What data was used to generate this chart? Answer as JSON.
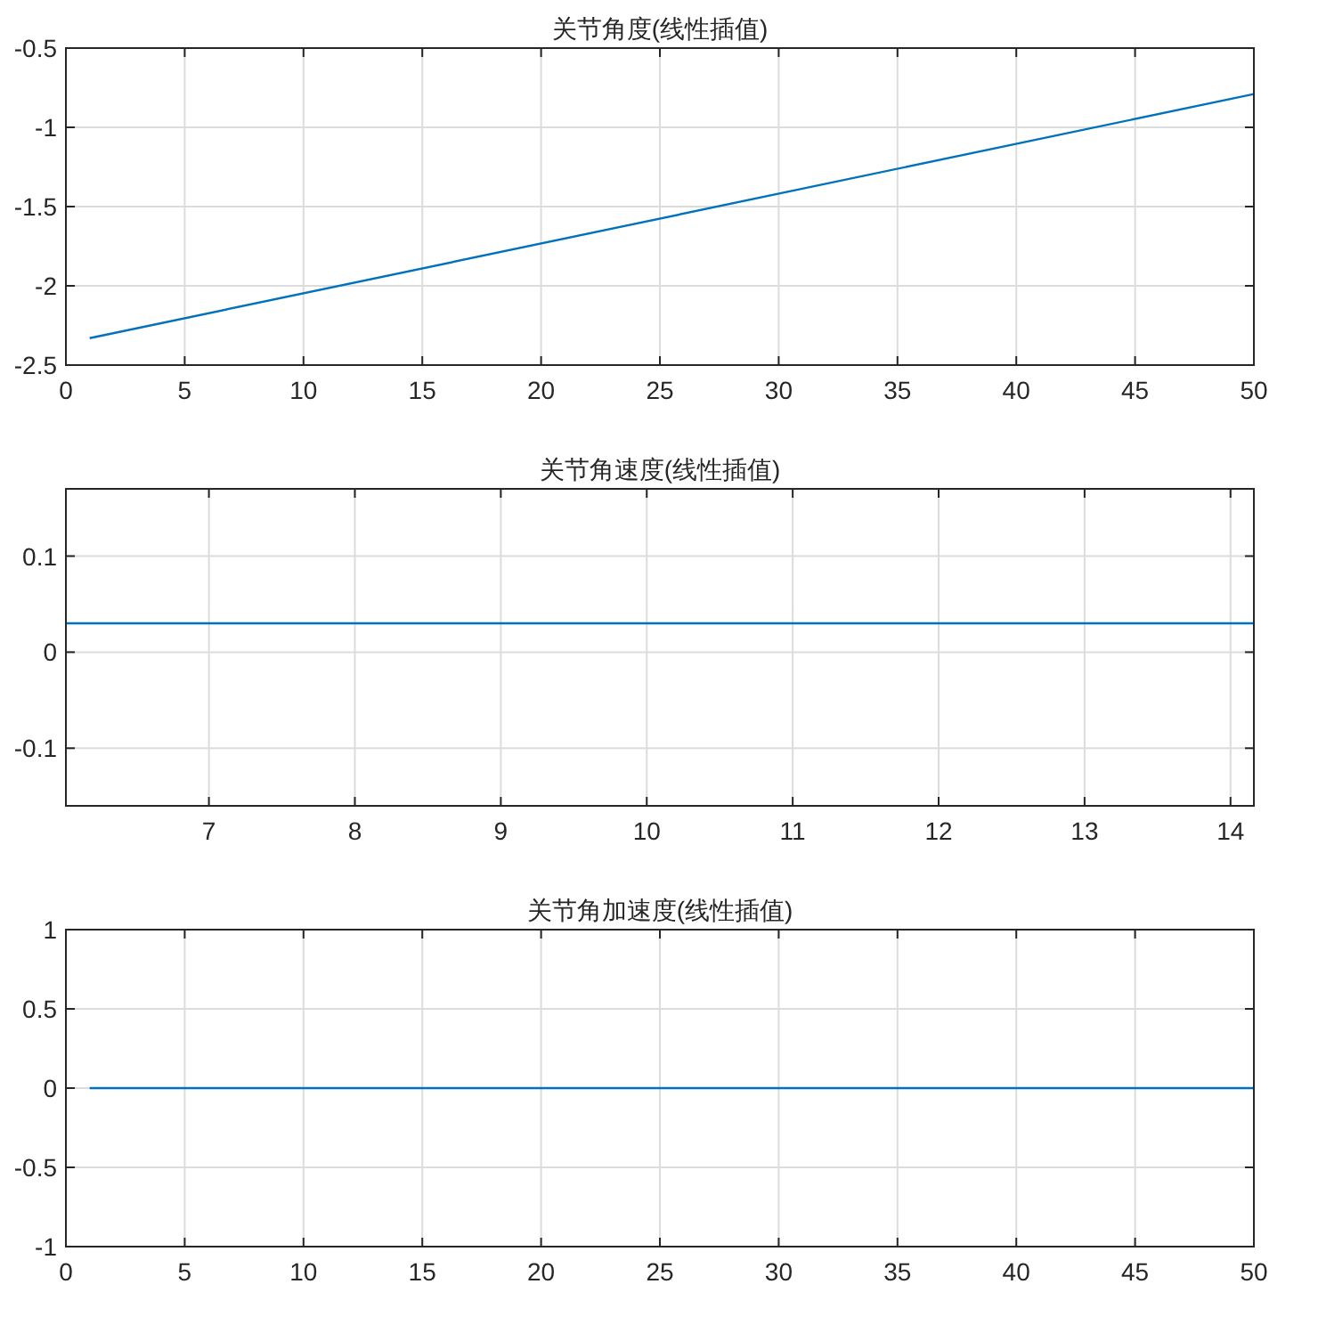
{
  "chart_data": [
    {
      "type": "line",
      "title": "关节角度(线性插值)",
      "xlim": [
        0,
        50
      ],
      "ylim": [
        -2.5,
        -0.5
      ],
      "xticks": [
        0,
        5,
        10,
        15,
        20,
        25,
        30,
        35,
        40,
        45,
        50
      ],
      "yticks": [
        -2.5,
        -2,
        -1.5,
        -1,
        -0.5
      ],
      "grid": true,
      "series": [
        {
          "color": "#0072bd",
          "x": [
            1,
            50
          ],
          "values": [
            -2.33,
            -0.79
          ]
        }
      ]
    },
    {
      "type": "line",
      "title": "关节角速度(线性插值)",
      "xlim": [
        6.02,
        14.16
      ],
      "ylim": [
        -0.16,
        0.17
      ],
      "xticks": [
        7,
        8,
        9,
        10,
        11,
        12,
        13,
        14
      ],
      "yticks": [
        -0.1,
        0,
        0.1
      ],
      "grid": true,
      "series": [
        {
          "color": "#0072bd",
          "x": [
            6.02,
            14.16
          ],
          "values": [
            0.03,
            0.03
          ]
        }
      ]
    },
    {
      "type": "line",
      "title": "关节角加速度(线性插值)",
      "xlim": [
        0,
        50
      ],
      "ylim": [
        -1,
        1
      ],
      "xticks": [
        0,
        5,
        10,
        15,
        20,
        25,
        30,
        35,
        40,
        45,
        50
      ],
      "yticks": [
        -1,
        -0.5,
        0,
        0.5,
        1
      ],
      "grid": true,
      "series": [
        {
          "color": "#0072bd",
          "x": [
            1,
            50
          ],
          "values": [
            0,
            0
          ]
        }
      ]
    }
  ]
}
